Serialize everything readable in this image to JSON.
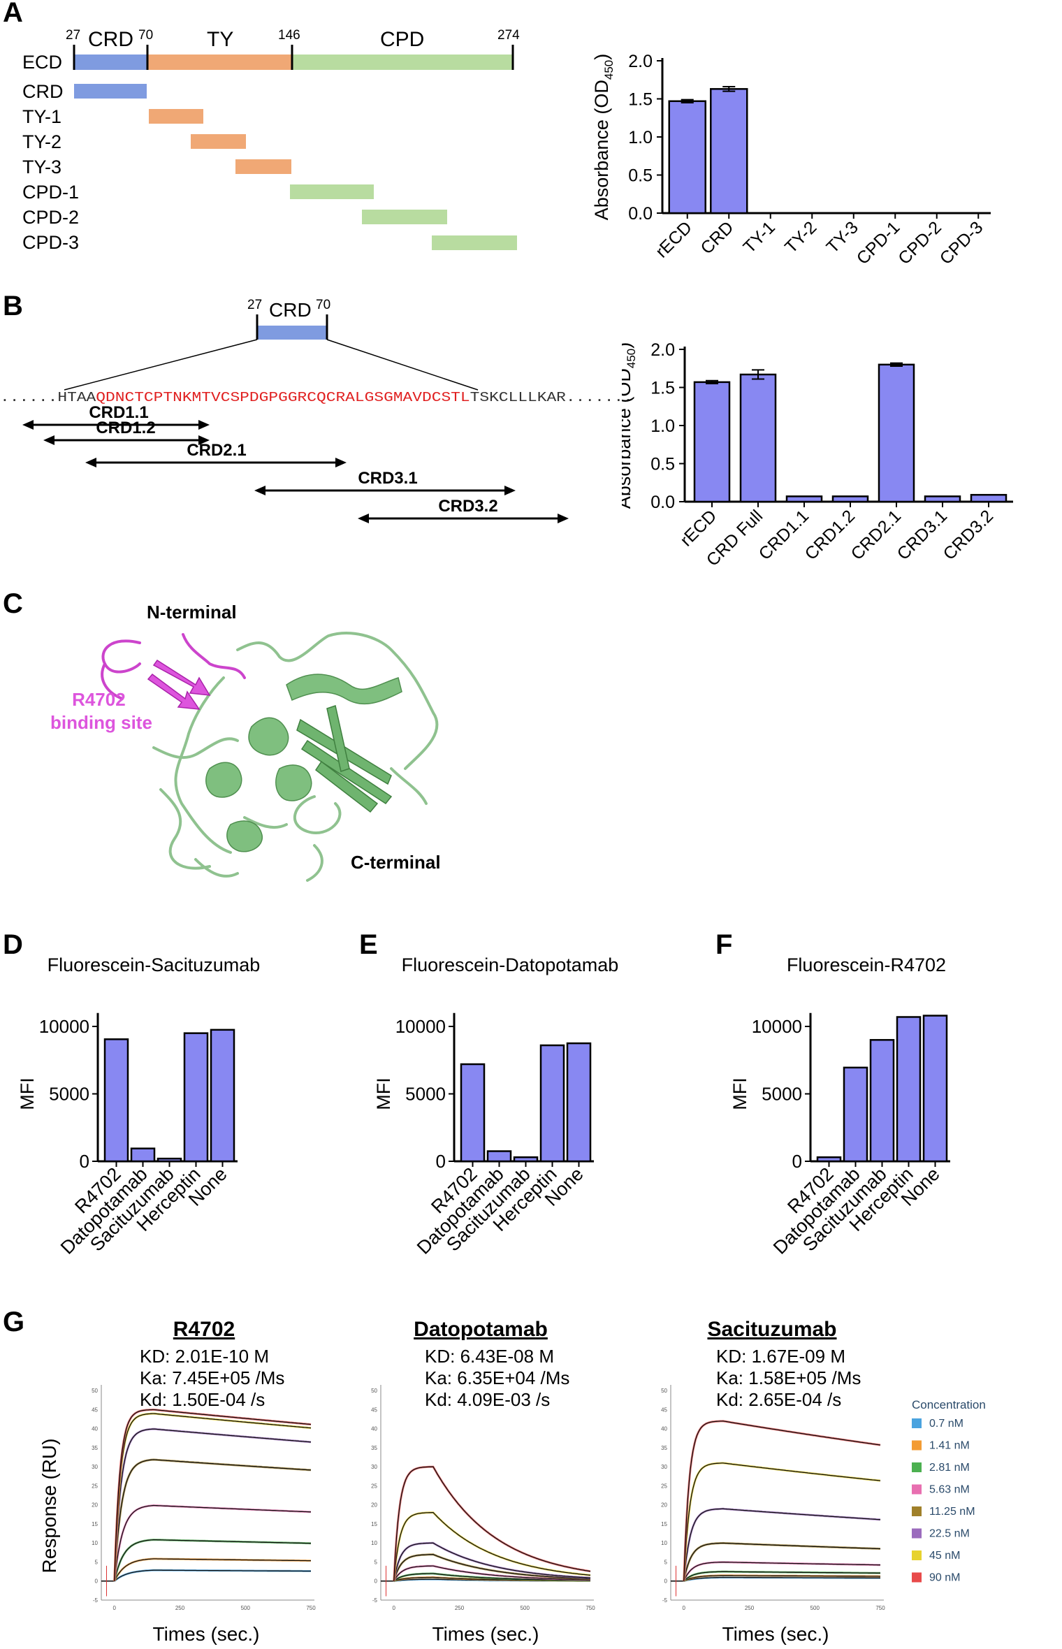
{
  "panels": {
    "A": {
      "letter": "A",
      "domain_map": {
        "ecd_label": "ECD",
        "regions": [
          {
            "name": "CRD",
            "start": "27",
            "end": "70",
            "color": "#7f9be0"
          },
          {
            "name": "TY",
            "start": "70",
            "end": "146",
            "color": "#f0a875"
          },
          {
            "name": "CPD",
            "start": "146",
            "end": "274",
            "color": "#b8dca0"
          }
        ],
        "fragments": [
          "CRD",
          "TY-1",
          "TY-2",
          "TY-3",
          "CPD-1",
          "CPD-2",
          "CPD-3"
        ]
      }
    },
    "B": {
      "letter": "B",
      "crd_label": "CRD",
      "crd_start": "27",
      "crd_end": "70",
      "sequence_prefix": "......HTAA",
      "sequence_red": "QDNCTCPTNKMTVCSPDGPGGRCQCRALGSGMAVDCSTL",
      "sequence_suffix": "TSKCLLLKAR.......",
      "peptides": [
        "CRD1.1",
        "CRD1.2",
        "CRD2.1",
        "CRD3.1",
        "CRD3.2"
      ]
    },
    "C": {
      "letter": "C",
      "n_terminal": "N-terminal",
      "c_terminal": "C-terminal",
      "binding_site_line1": "R4702",
      "binding_site_line2": "binding site"
    },
    "D": {
      "letter": "D"
    },
    "E": {
      "letter": "E"
    },
    "F": {
      "letter": "F"
    },
    "G": {
      "letter": "G",
      "sensorgrams": [
        {
          "title": "R4702",
          "kd": "KD: 2.01E-10 M",
          "ka": "Ka: 7.45E+05 /Ms",
          "kdiss": "Kd: 1.50E-04 /s",
          "xlabel": "Times (sec.)"
        },
        {
          "title": "Datopotamab",
          "kd": "KD: 6.43E-08 M",
          "ka": "Ka: 6.35E+04 /Ms",
          "kdiss": "Kd: 4.09E-03 /s",
          "xlabel": "Times (sec.)"
        },
        {
          "title": "Sacituzumab",
          "kd": "KD: 1.67E-09 M",
          "ka": "Ka: 1.58E+05 /Ms",
          "kdiss": "Kd: 2.65E-04 /s",
          "xlabel": "Times (sec.)"
        }
      ],
      "ylabel": "Response (RU)",
      "y_ticks": [
        "50",
        "45",
        "40",
        "35",
        "30",
        "25",
        "20",
        "15",
        "10",
        "5",
        "0",
        "-5"
      ],
      "x_ticks": [
        "0",
        "250",
        "500",
        "750"
      ],
      "legend_title": "Concentration",
      "concentrations": [
        {
          "label": "0.7 nM",
          "color": "#4aa3df"
        },
        {
          "label": "1.41 nM",
          "color": "#f39c34"
        },
        {
          "label": "2.81 nM",
          "color": "#4cb050"
        },
        {
          "label": "5.63 nM",
          "color": "#e86fb0"
        },
        {
          "label": "11.25 nM",
          "color": "#a0802a"
        },
        {
          "label": "22.5 nM",
          "color": "#9b6bbd"
        },
        {
          "label": "45 nM",
          "color": "#e7d22f"
        },
        {
          "label": "90 nM",
          "color": "#e84a4a"
        }
      ]
    }
  },
  "chart_data": [
    {
      "id": "A-bar",
      "type": "bar",
      "categories": [
        "rECD",
        "CRD",
        "TY-1",
        "TY-2",
        "TY-3",
        "CPD-1",
        "CPD-2",
        "CPD-3"
      ],
      "values": [
        1.47,
        1.63,
        0,
        0,
        0,
        0,
        0,
        0
      ],
      "errors": [
        0.02,
        0.03,
        0,
        0,
        0,
        0,
        0,
        0
      ],
      "ylabel_main": "Absorbance (OD",
      "ylabel_sub": "450",
      "ylabel_close": ")",
      "ylim": [
        0,
        2.0
      ],
      "yticks": [
        "0.0",
        "0.5",
        "1.0",
        "1.5",
        "2.0"
      ],
      "bar_color": "#8888f2"
    },
    {
      "id": "B-bar",
      "type": "bar",
      "categories": [
        "rECD",
        "CRD Full",
        "CRD1.1",
        "CRD1.2",
        "CRD2.1",
        "CRD3.1",
        "CRD3.2"
      ],
      "values": [
        1.57,
        1.67,
        0.07,
        0.07,
        1.8,
        0.07,
        0.09
      ],
      "errors": [
        0.02,
        0.06,
        0,
        0,
        0.02,
        0,
        0
      ],
      "ylabel_main": "Absorbance (OD",
      "ylabel_sub": "450",
      "ylabel_close": ")",
      "ylim": [
        0,
        2.0
      ],
      "yticks": [
        "0.0",
        "0.5",
        "1.0",
        "1.5",
        "2.0"
      ],
      "bar_color": "#8888f2"
    },
    {
      "id": "D-bar",
      "type": "bar",
      "title": "Fluorescein-Sacituzumab",
      "categories": [
        "R4702",
        "Datopotamab",
        "Sacituzumab",
        "Herceptin",
        "None"
      ],
      "values": [
        9050,
        950,
        200,
        9500,
        9750
      ],
      "ylabel": "MFI",
      "ylim": [
        0,
        10000
      ],
      "yticks": [
        "0",
        "5000",
        "10000"
      ],
      "bar_color": "#8888f2"
    },
    {
      "id": "E-bar",
      "type": "bar",
      "title": "Fluorescein-Datopotamab",
      "categories": [
        "R4702",
        "Datopotamab",
        "Sacituzumab",
        "Herceptin",
        "None"
      ],
      "values": [
        7200,
        750,
        300,
        8600,
        8750
      ],
      "ylabel": "MFI",
      "ylim": [
        0,
        10000
      ],
      "yticks": [
        "0",
        "5000",
        "10000"
      ],
      "bar_color": "#8888f2"
    },
    {
      "id": "F-bar",
      "type": "bar",
      "title": "Fluorescein-R4702",
      "categories": [
        "R4702",
        "Datopotamab",
        "Sacituzumab",
        "Herceptin",
        "None"
      ],
      "values": [
        300,
        6950,
        9000,
        10700,
        10800
      ],
      "ylabel": "MFI",
      "ylim": [
        0,
        10000
      ],
      "yticks": [
        "0",
        "5000",
        "10000"
      ],
      "bar_color": "#8888f2"
    },
    {
      "id": "G-sensorgrams",
      "type": "line",
      "x_range": [
        -50,
        750
      ],
      "y_range": [
        -5,
        50
      ],
      "association_end": 150,
      "series": [
        {
          "antibody": "R4702",
          "plateaus": [
            3,
            6,
            11,
            20,
            32,
            40,
            44,
            45
          ],
          "decay": 0.00015
        },
        {
          "antibody": "Datopotamab",
          "plateaus": [
            0.5,
            1,
            2,
            4,
            7,
            10,
            18,
            30
          ],
          "decay": 0.0041
        },
        {
          "antibody": "Sacituzumab",
          "plateaus": [
            1,
            1.5,
            2.5,
            5,
            10,
            19,
            31,
            42
          ],
          "decay": 0.00027
        }
      ]
    }
  ]
}
